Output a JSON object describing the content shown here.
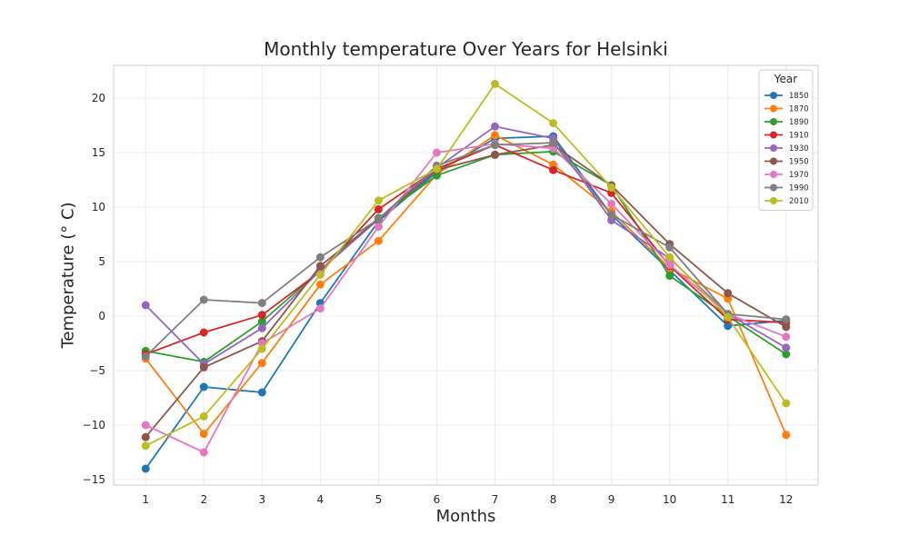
{
  "chart_data": {
    "type": "line",
    "title": "Monthly temperature Over Years for Helsinki",
    "xlabel": "Months",
    "ylabel": "Temperature (° C)",
    "x": [
      1,
      2,
      3,
      4,
      5,
      6,
      7,
      8,
      9,
      10,
      11,
      12
    ],
    "ylim": [
      -15.5,
      23
    ],
    "yticks": [
      -15,
      -10,
      -5,
      0,
      5,
      10,
      15,
      20
    ],
    "ytick_labels": [
      "−15",
      "−10",
      "−5",
      "0",
      "5",
      "10",
      "15",
      "20"
    ],
    "grid": true,
    "legend": {
      "title": "Year",
      "position": "top-right"
    },
    "series": [
      {
        "name": "1850",
        "color": "#1f77b4",
        "values": [
          -14.0,
          -6.5,
          -7.0,
          1.2,
          8.7,
          13.2,
          16.3,
          16.5,
          9.3,
          4.2,
          -0.9,
          -0.4
        ]
      },
      {
        "name": "1870",
        "color": "#ff7f0e",
        "values": [
          -3.9,
          -10.8,
          -4.3,
          2.9,
          6.9,
          13.0,
          16.6,
          13.9,
          9.6,
          4.4,
          1.6,
          -10.9
        ]
      },
      {
        "name": "1890",
        "color": "#2ca02c",
        "values": [
          -3.2,
          -4.2,
          -0.5,
          4.2,
          9.0,
          12.9,
          14.8,
          15.1,
          12.0,
          3.7,
          0.0,
          -3.5
        ]
      },
      {
        "name": "1910",
        "color": "#d62728",
        "values": [
          -3.5,
          -1.5,
          0.1,
          4.1,
          9.8,
          13.5,
          15.7,
          13.4,
          11.3,
          4.6,
          -0.3,
          -0.6
        ]
      },
      {
        "name": "1930",
        "color": "#9467bd",
        "values": [
          1.0,
          -4.4,
          -1.1,
          4.2,
          8.9,
          13.6,
          17.4,
          16.3,
          8.8,
          5.3,
          0.2,
          -2.9
        ]
      },
      {
        "name": "1950",
        "color": "#8c564b",
        "values": [
          -11.1,
          -4.7,
          -2.3,
          4.6,
          8.9,
          13.4,
          14.8,
          15.7,
          12.0,
          6.6,
          2.1,
          -1.0
        ]
      },
      {
        "name": "1970",
        "color": "#e377c2",
        "values": [
          -10.0,
          -12.5,
          -2.5,
          0.7,
          8.2,
          15.0,
          15.8,
          15.4,
          10.3,
          4.7,
          0.2,
          -1.9
        ]
      },
      {
        "name": "1990",
        "color": "#7f7f7f",
        "values": [
          -3.7,
          1.5,
          1.2,
          5.4,
          8.9,
          13.8,
          15.7,
          15.9,
          9.3,
          6.3,
          0.2,
          -0.3
        ]
      },
      {
        "name": "2010",
        "color": "#bcbd22",
        "values": [
          -11.9,
          -9.2,
          -3.0,
          3.8,
          10.6,
          13.5,
          21.3,
          17.7,
          11.8,
          5.4,
          -0.1,
          -8.0
        ]
      }
    ]
  }
}
